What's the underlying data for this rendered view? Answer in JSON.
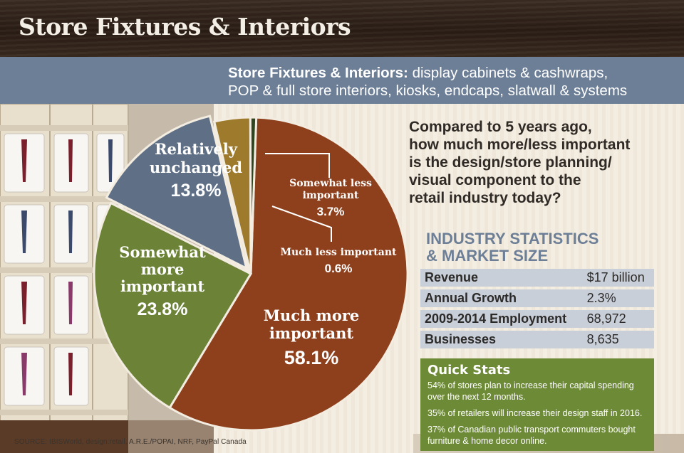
{
  "header": {
    "title": "Store Fixtures & Interiors"
  },
  "subheader": {
    "bold": "Store Fixtures & Interiors:",
    "text_line1": "display cabinets & cashwraps,",
    "text_line2": "POP & full store interiors, kiosks, endcaps, slatwall & systems"
  },
  "question": {
    "line1": "Compared to 5 years ago,",
    "line2": "how much more/less important",
    "line3": "is the design/store planning/",
    "line4": "visual component to the",
    "line5": "retail industry today?"
  },
  "chart_data": {
    "type": "pie",
    "slices": [
      {
        "label_lines": [
          "Much more",
          "important"
        ],
        "value": 58.1,
        "value_label": "58.1%",
        "color": "#8e3f1c"
      },
      {
        "label_lines": [
          "Somewhat",
          "more",
          "important"
        ],
        "value": 23.8,
        "value_label": "23.8%",
        "color": "#6b8237"
      },
      {
        "label_lines": [
          "Relatively",
          "unchanged"
        ],
        "value": 13.8,
        "value_label": "13.8%",
        "color": "#5e6f86"
      },
      {
        "label_lines": [
          "Somewhat less",
          "important"
        ],
        "value": 3.7,
        "value_label": "3.7%",
        "color": "#9e7a2c"
      },
      {
        "label_lines": [
          "Much less important"
        ],
        "value": 0.6,
        "value_label": "0.6%",
        "color": "#2f4520"
      }
    ]
  },
  "industry_stats": {
    "title_line1": "INDUSTRY STATISTICS",
    "title_line2": "& MARKET SIZE",
    "rows": [
      {
        "label": "Revenue",
        "value": "$17 billion"
      },
      {
        "label": "Annual Growth",
        "value": "2.3%"
      },
      {
        "label": "2009-2014 Employment",
        "value": "68,972"
      },
      {
        "label": "Businesses",
        "value": "8,635"
      }
    ]
  },
  "quick_stats": {
    "title": "Quick Stats",
    "items": [
      "54% of stores plan to increase their capital spending over the next 12 months.",
      "35% of retailers will increase their design staff in 2016.",
      "37% of Canadian public transport commuters bought furniture & home decor online."
    ]
  },
  "source": "SOURCE: IBISWorld, design:retail, A.R.E./POPAI, NRF, PayPal Canada"
}
